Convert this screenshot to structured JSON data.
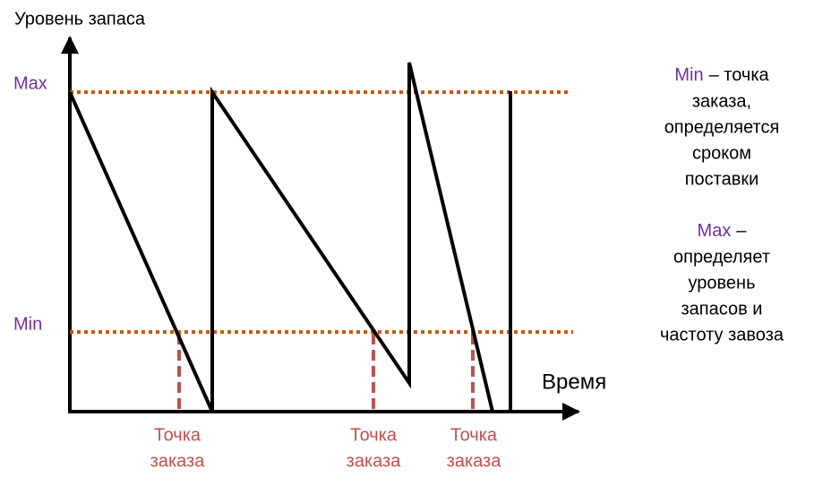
{
  "y_axis_label": "Уровень запаса",
  "x_axis_label": "Время",
  "levels": {
    "max": "Max",
    "min": "Min"
  },
  "order_point_labels": [
    [
      "Точка",
      "заказа"
    ],
    [
      "Точка",
      "заказа"
    ],
    [
      "Точка",
      "заказа"
    ]
  ],
  "notes": [
    {
      "term": "Min",
      "lines": [
        "– точка",
        "заказа,",
        "определяется",
        "сроком",
        "поставки"
      ]
    },
    {
      "term": "Max",
      "lines": [
        "–",
        "определяет",
        "уровень",
        "запасов и",
        "частоту завоза"
      ]
    }
  ]
}
